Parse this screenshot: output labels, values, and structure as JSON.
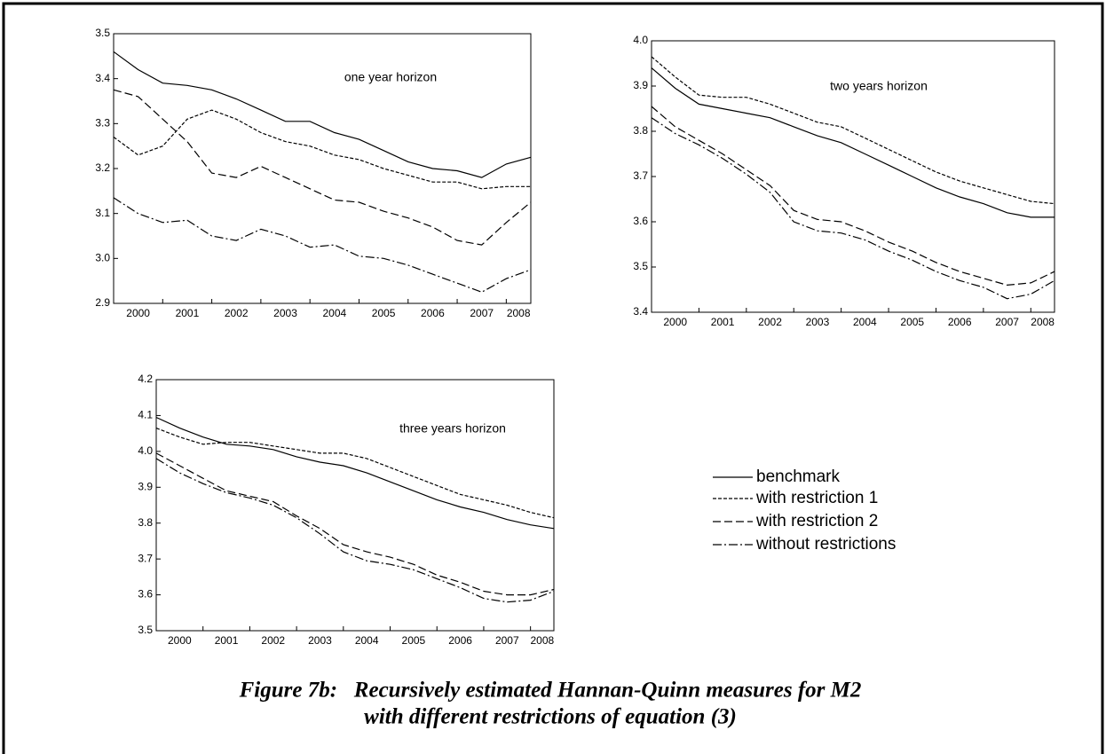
{
  "chart_data": [
    {
      "type": "line",
      "annotation": "one year horizon",
      "x": [
        2000,
        2000.5,
        2001,
        2001.5,
        2002,
        2002.5,
        2003,
        2003.5,
        2004,
        2004.5,
        2005,
        2005.5,
        2006,
        2006.5,
        2007,
        2007.5,
        2008,
        2008.5
      ],
      "xlim": [
        2000,
        2008.5
      ],
      "xticks": [
        2000,
        2001,
        2002,
        2003,
        2004,
        2005,
        2006,
        2007,
        2008
      ],
      "ylim": [
        2.9,
        3.5
      ],
      "yticks": [
        2.9,
        {
          "value": 3,
          "label": "3.0"
        },
        3.1,
        3.2,
        3.3,
        3.4,
        3.5
      ],
      "series": [
        {
          "color": "#000000",
          "dash": "none",
          "values": [
            3.46,
            3.42,
            3.39,
            3.385,
            3.375,
            3.355,
            3.33,
            3.305,
            3.305,
            3.28,
            3.265,
            3.24,
            3.215,
            3.2,
            3.195,
            3.18,
            3.21,
            3.225
          ]
        },
        {
          "color": "#000000",
          "dash": "4,2",
          "values": [
            3.27,
            3.23,
            3.25,
            3.31,
            3.33,
            3.31,
            3.28,
            3.26,
            3.25,
            3.23,
            3.22,
            3.2,
            3.185,
            3.17,
            3.17,
            3.155,
            3.16,
            3.16
          ]
        },
        {
          "color": "#000000",
          "dash": "9,4",
          "values": [
            3.375,
            3.36,
            3.31,
            3.26,
            3.19,
            3.18,
            3.205,
            3.18,
            3.155,
            3.13,
            3.125,
            3.105,
            3.09,
            3.07,
            3.04,
            3.03,
            3.08,
            3.125
          ]
        },
        {
          "color": "#000000",
          "dash": "10,3,2,3",
          "values": [
            3.135,
            3.1,
            3.08,
            3.085,
            3.05,
            3.04,
            3.065,
            3.05,
            3.025,
            3.03,
            3.005,
            3.0,
            2.985,
            2.965,
            2.945,
            2.925,
            2.955,
            2.975
          ]
        }
      ]
    },
    {
      "type": "line",
      "annotation": "two years horizon",
      "x": [
        2000,
        2000.5,
        2001,
        2001.5,
        2002,
        2002.5,
        2003,
        2003.5,
        2004,
        2004.5,
        2005,
        2005.5,
        2006,
        2006.5,
        2007,
        2007.5,
        2008,
        2008.5
      ],
      "xlim": [
        2000,
        2008.5
      ],
      "xticks": [
        2000,
        2001,
        2002,
        2003,
        2004,
        2005,
        2006,
        2007,
        2008
      ],
      "ylim": [
        3.4,
        4.0
      ],
      "yticks": [
        3.4,
        3.5,
        3.6,
        3.7,
        3.8,
        3.9,
        {
          "value": 4,
          "label": "4.0"
        }
      ],
      "series": [
        {
          "color": "#000000",
          "dash": "none",
          "values": [
            3.94,
            3.895,
            3.86,
            3.85,
            3.84,
            3.83,
            3.81,
            3.79,
            3.775,
            3.75,
            3.725,
            3.7,
            3.675,
            3.655,
            3.64,
            3.62,
            3.61,
            3.61
          ]
        },
        {
          "color": "#000000",
          "dash": "4,2",
          "values": [
            3.965,
            3.92,
            3.88,
            3.875,
            3.875,
            3.86,
            3.84,
            3.82,
            3.81,
            3.785,
            3.76,
            3.735,
            3.71,
            3.69,
            3.675,
            3.66,
            3.645,
            3.64
          ]
        },
        {
          "color": "#000000",
          "dash": "9,4",
          "values": [
            3.855,
            3.81,
            3.78,
            3.75,
            3.715,
            3.68,
            3.625,
            3.605,
            3.6,
            3.58,
            3.555,
            3.535,
            3.51,
            3.49,
            3.475,
            3.46,
            3.465,
            3.49
          ]
        },
        {
          "color": "#000000",
          "dash": "10,3,2,3",
          "values": [
            3.83,
            3.795,
            3.77,
            3.74,
            3.705,
            3.665,
            3.6,
            3.58,
            3.575,
            3.56,
            3.535,
            3.515,
            3.49,
            3.47,
            3.455,
            3.43,
            3.44,
            3.47
          ]
        }
      ]
    },
    {
      "type": "line",
      "annotation": "three years horizon",
      "x": [
        2000,
        2000.5,
        2001,
        2001.5,
        2002,
        2002.5,
        2003,
        2003.5,
        2004,
        2004.5,
        2005,
        2005.5,
        2006,
        2006.5,
        2007,
        2007.5,
        2008,
        2008.5
      ],
      "xlim": [
        2000,
        2008.5
      ],
      "xticks": [
        2000,
        2001,
        2002,
        2003,
        2004,
        2005,
        2006,
        2007,
        2008
      ],
      "ylim": [
        3.5,
        4.2
      ],
      "yticks": [
        3.5,
        3.6,
        3.7,
        3.8,
        3.9,
        {
          "value": 4,
          "label": "4.0"
        },
        4.1,
        4.2
      ],
      "series": [
        {
          "name": "benchmark",
          "color": "#000000",
          "dash": "none",
          "values": [
            4.095,
            4.065,
            4.04,
            4.02,
            4.015,
            4.005,
            3.985,
            3.97,
            3.96,
            3.94,
            3.915,
            3.89,
            3.865,
            3.845,
            3.83,
            3.81,
            3.795,
            3.785
          ]
        },
        {
          "name": "with restriction 1",
          "color": "#000000",
          "dash": "4,2",
          "values": [
            4.065,
            4.04,
            4.02,
            4.025,
            4.025,
            4.015,
            4.005,
            3.995,
            3.995,
            3.98,
            3.955,
            3.93,
            3.905,
            3.88,
            3.865,
            3.85,
            3.83,
            3.815
          ]
        },
        {
          "name": "with restriction 2",
          "color": "#000000",
          "dash": "9,4",
          "values": [
            3.995,
            3.96,
            3.925,
            3.89,
            3.875,
            3.86,
            3.82,
            3.785,
            3.74,
            3.72,
            3.705,
            3.685,
            3.655,
            3.635,
            3.61,
            3.6,
            3.6,
            3.615
          ]
        },
        {
          "name": "without restrictions",
          "color": "#000000",
          "dash": "10,3,2,3",
          "values": [
            3.98,
            3.94,
            3.91,
            3.885,
            3.87,
            3.85,
            3.815,
            3.77,
            3.72,
            3.695,
            3.685,
            3.67,
            3.645,
            3.62,
            3.59,
            3.58,
            3.585,
            3.61
          ]
        }
      ]
    }
  ],
  "caption": [
    "Figure 7b:   Recursively estimated Hannan-Quinn measures for M2",
    "with different restrictions of equation (3)"
  ]
}
